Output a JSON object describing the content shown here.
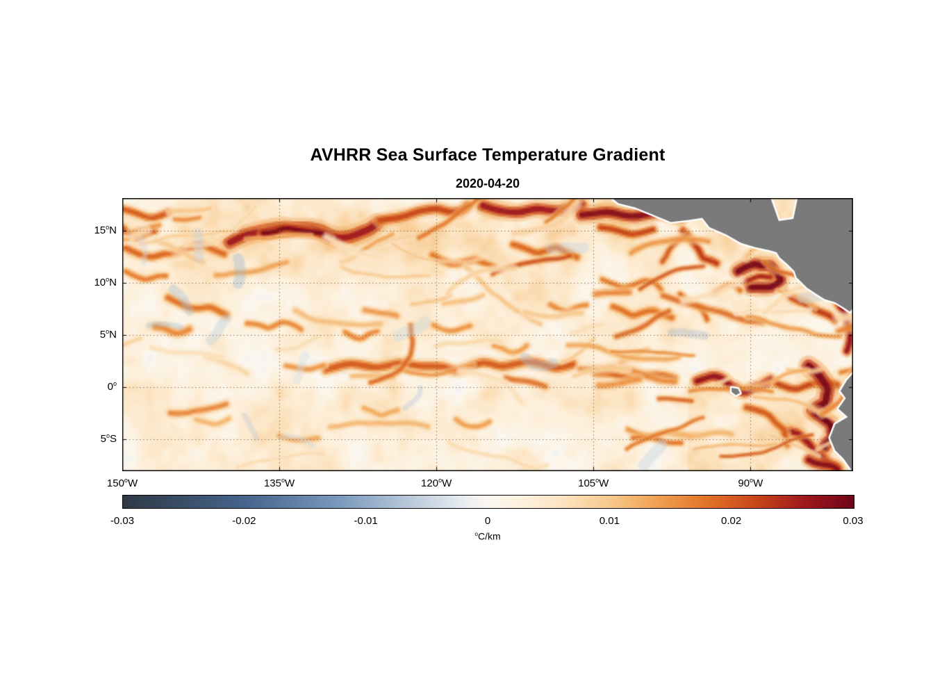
{
  "chart_data": {
    "type": "heatmap",
    "title": "AVHRR Sea Surface Temperature Gradient",
    "subtitle": "2020-04-20",
    "x_axis": {
      "tick_lons": [
        -150,
        -135,
        -120,
        -105,
        -90
      ],
      "tick_labels": [
        "150°W",
        "135°W",
        "120°W",
        "105°W",
        "90°W"
      ]
    },
    "y_axis": {
      "tick_lats": [
        15,
        10,
        5,
        0,
        -5
      ],
      "tick_labels": [
        "15°N",
        "10°N",
        "5°N",
        "0°",
        "5°S"
      ]
    },
    "map_extent": {
      "lon_min": -150,
      "lon_max": -80.2,
      "lat_min": -8.1,
      "lat_max": 18.1
    },
    "grid": "dotted",
    "land_color": "#7a7a7a",
    "background_color": "#ffffff",
    "colorbar": {
      "label": "°C/km",
      "min": -0.03,
      "max": 0.03,
      "ticks": [
        -0.03,
        -0.02,
        -0.01,
        0,
        0.01,
        0.02,
        0.03
      ],
      "tick_labels": [
        "-0.03",
        "-0.02",
        "-0.01",
        "0",
        "0.01",
        "0.02",
        "0.03"
      ],
      "orientation": "horizontal",
      "colormap_stops": [
        [
          -0.03,
          "#2e3a46"
        ],
        [
          -0.02,
          "#46648c"
        ],
        [
          -0.012,
          "#7d9bbe"
        ],
        [
          -0.006,
          "#becddc"
        ],
        [
          -0.002,
          "#e9edf2"
        ],
        [
          0,
          "#fbf7ef"
        ],
        [
          0.003,
          "#fdf0dc"
        ],
        [
          0.006,
          "#fce4c2"
        ],
        [
          0.01,
          "#f7c98d"
        ],
        [
          0.014,
          "#f0a050"
        ],
        [
          0.018,
          "#e17328"
        ],
        [
          0.022,
          "#c84619"
        ],
        [
          0.026,
          "#a0191e"
        ],
        [
          0.03,
          "#6e0519"
        ]
      ]
    },
    "land_polygons": {
      "central_america": [
        [
          -103.6,
          18.4
        ],
        [
          -102.6,
          17.6
        ],
        [
          -101.0,
          17.2
        ],
        [
          -99.3,
          16.5
        ],
        [
          -97.6,
          15.8
        ],
        [
          -95.9,
          16.0
        ],
        [
          -94.6,
          16.2
        ],
        [
          -93.9,
          15.3
        ],
        [
          -92.3,
          14.6
        ],
        [
          -90.9,
          13.8
        ],
        [
          -89.6,
          13.4
        ],
        [
          -88.2,
          13.1
        ],
        [
          -87.5,
          12.9
        ],
        [
          -87.2,
          12.4
        ],
        [
          -86.5,
          11.8
        ],
        [
          -85.8,
          11.1
        ],
        [
          -85.6,
          10.5
        ],
        [
          -85.1,
          10.0
        ],
        [
          -84.6,
          9.5
        ],
        [
          -83.7,
          8.9
        ],
        [
          -82.9,
          8.4
        ],
        [
          -81.9,
          8.1
        ],
        [
          -81.1,
          7.6
        ],
        [
          -80.5,
          7.2
        ],
        [
          -80.1,
          7.7
        ],
        [
          -79.7,
          7.5
        ],
        [
          -79.2,
          8.0
        ],
        [
          -78.5,
          7.8
        ],
        [
          -78.0,
          8.3
        ],
        [
          -78.0,
          19.0
        ],
        [
          -85.3,
          19.0
        ],
        [
          -85.9,
          16.1
        ],
        [
          -87.3,
          15.9
        ],
        [
          -88.4,
          19.0
        ],
        [
          -103.6,
          19.0
        ]
      ],
      "south_america": [
        [
          -80.1,
          1.4
        ],
        [
          -80.8,
          0.6
        ],
        [
          -81.4,
          -0.4
        ],
        [
          -80.9,
          -1.1
        ],
        [
          -81.6,
          -2.1
        ],
        [
          -80.7,
          -2.9
        ],
        [
          -81.9,
          -3.6
        ],
        [
          -82.4,
          -4.9
        ],
        [
          -81.9,
          -6.1
        ],
        [
          -81.1,
          -6.9
        ],
        [
          -80.4,
          -7.9
        ],
        [
          -80.0,
          -8.6
        ],
        [
          -78.0,
          -8.6
        ],
        [
          -78.0,
          1.8
        ]
      ],
      "galapagos": [
        [
          -91.8,
          -0.1
        ],
        [
          -91.2,
          -0.2
        ],
        [
          -91.0,
          -0.6
        ],
        [
          -91.4,
          -0.8
        ],
        [
          -91.8,
          -0.5
        ]
      ]
    }
  }
}
